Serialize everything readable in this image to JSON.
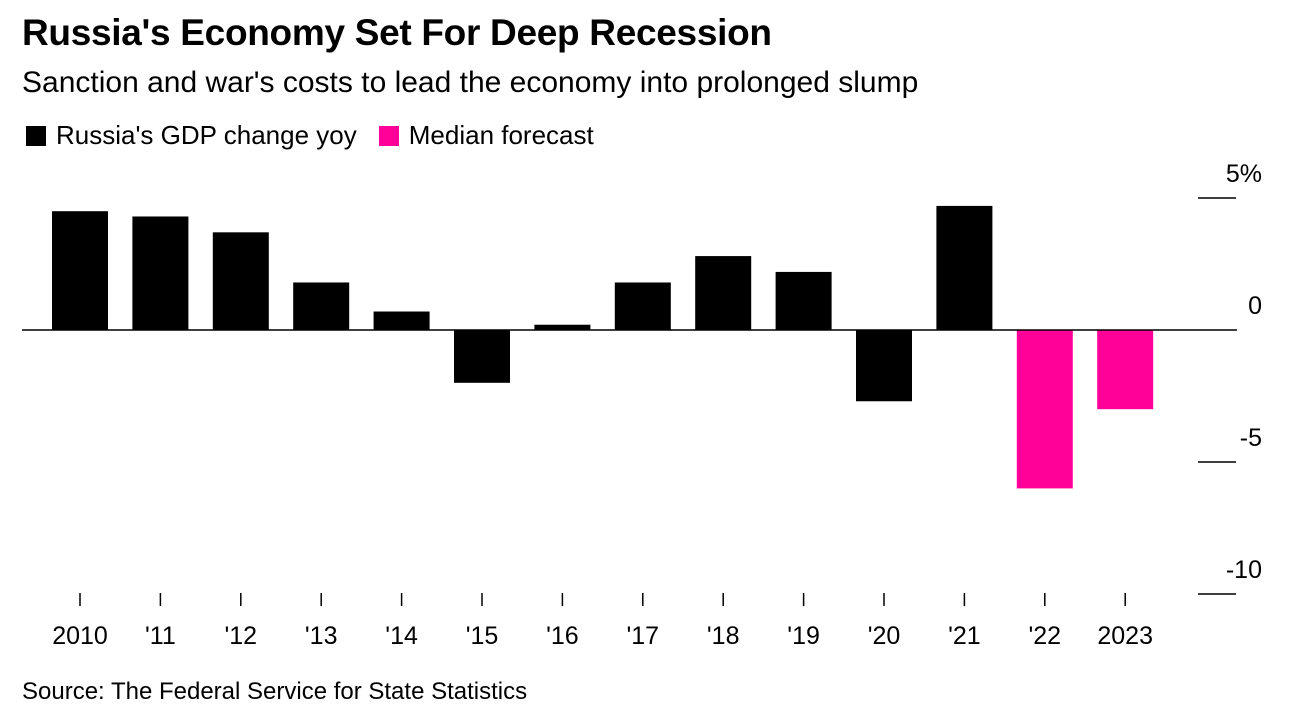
{
  "title": "Russia's Economy Set For Deep Recession",
  "subtitle": "Sanction and war's costs to lead the economy into prolonged slump",
  "source": "Source: The Federal Service for State Statistics",
  "legend": [
    {
      "label": "Russia's GDP change yoy",
      "color": "#000000"
    },
    {
      "label": "Median forecast",
      "color": "#ff0099"
    }
  ],
  "chart_data": {
    "type": "bar",
    "categories": [
      "2010",
      "'11",
      "'12",
      "'13",
      "'14",
      "'15",
      "'16",
      "'17",
      "'18",
      "'19",
      "'20",
      "'21",
      "'22",
      "2023"
    ],
    "series": [
      {
        "name": "Russia's GDP change yoy",
        "color": "#000000",
        "values": [
          4.5,
          4.3,
          3.7,
          1.8,
          0.7,
          -2.0,
          0.2,
          1.8,
          2.8,
          2.2,
          -2.7,
          4.7,
          null,
          null
        ]
      },
      {
        "name": "Median forecast",
        "color": "#ff0099",
        "values": [
          null,
          null,
          null,
          null,
          null,
          null,
          null,
          null,
          null,
          null,
          null,
          null,
          -6.0,
          -3.0
        ]
      }
    ],
    "y_ticks": [
      {
        "value": 5,
        "label": "5%"
      },
      {
        "value": 0,
        "label": "0"
      },
      {
        "value": -5,
        "label": "-5"
      },
      {
        "value": -10,
        "label": "-10"
      }
    ],
    "ylim": [
      -10,
      5
    ],
    "legend_position": "top-left",
    "grid": false
  }
}
